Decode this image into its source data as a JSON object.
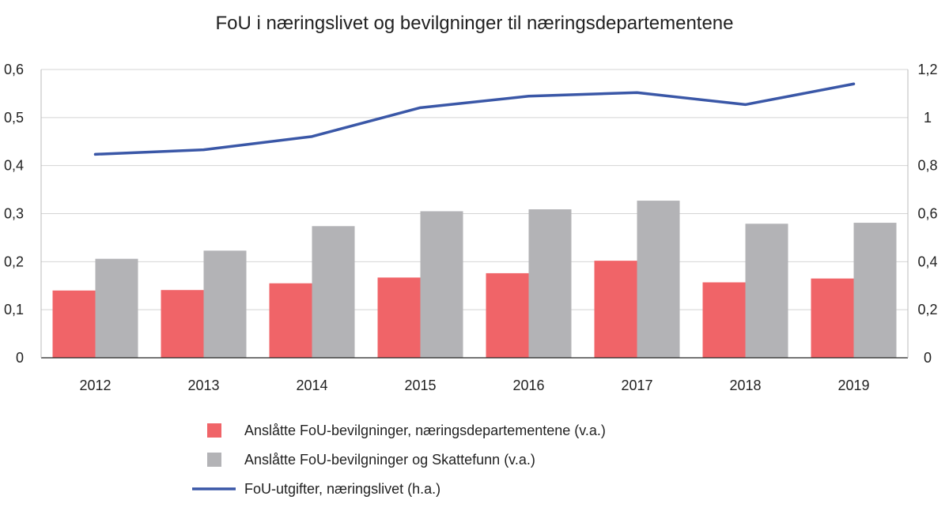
{
  "chart_data": {
    "type": "bar",
    "title": "FoU i næringslivet og bevilgninger til næringsdepartementene",
    "categories": [
      "2012",
      "2013",
      "2014",
      "2015",
      "2016",
      "2017",
      "2018",
      "2019"
    ],
    "y_left": {
      "ylim": [
        0,
        0.6
      ],
      "ticks": [
        0,
        0.1,
        0.2,
        0.3,
        0.4,
        0.5,
        0.6
      ],
      "tick_labels": [
        "0",
        "0,1",
        "0,2",
        "0,3",
        "0,4",
        "0,5",
        "0,6"
      ]
    },
    "y_right": {
      "ylim": [
        0,
        1.2
      ],
      "ticks": [
        0,
        0.2,
        0.4,
        0.6,
        0.8,
        1.0,
        1.2
      ],
      "tick_labels": [
        "0",
        "0,2",
        "0,4",
        "0,6",
        "0,8",
        "1",
        "1,2"
      ]
    },
    "series": [
      {
        "name": "Anslåtte FoU-bevilgninger, næringsdepartementene (v.a.)",
        "type": "bar",
        "axis": "left",
        "color": "#f06468",
        "values": [
          0.14,
          0.141,
          0.155,
          0.167,
          0.176,
          0.202,
          0.157,
          0.165
        ]
      },
      {
        "name": "Anslåtte FoU-bevilgninger og Skattefunn (v.a.)",
        "type": "bar",
        "axis": "left",
        "color": "#b3b3b6",
        "values": [
          0.206,
          0.223,
          0.274,
          0.305,
          0.309,
          0.327,
          0.279,
          0.281
        ]
      },
      {
        "name": "FoU-utgifter, næringslivet (h.a.)",
        "type": "line",
        "axis": "right",
        "color": "#3a57a7",
        "values": [
          0.847,
          0.866,
          0.921,
          1.041,
          1.089,
          1.104,
          1.054,
          1.14
        ]
      }
    ],
    "grid": "horizontal",
    "legend_position": "bottom"
  }
}
